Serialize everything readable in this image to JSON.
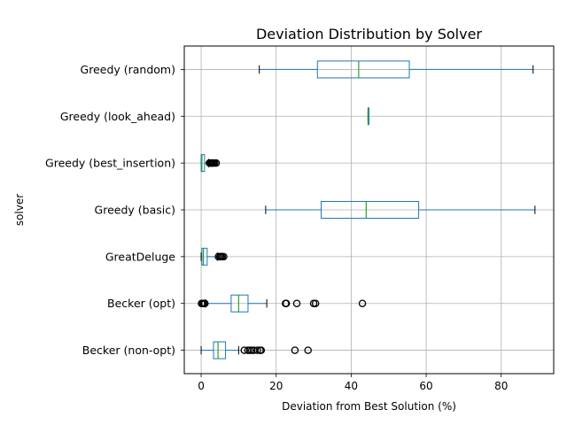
{
  "chart_data": {
    "type": "boxplot",
    "orientation": "horizontal",
    "title": "Deviation Distribution by Solver",
    "xlabel": "Deviation from Best Solution (%)",
    "ylabel": "solver",
    "xlim": [
      -4.5,
      94
    ],
    "xticks": [
      0,
      20,
      40,
      60,
      80
    ],
    "grid": true,
    "colors": {
      "box": "#1f77b4",
      "median": "#2ca02c",
      "grid": "#b0b0b0",
      "axis": "#000000",
      "flier": "#000000"
    },
    "categories": [
      "Greedy (random)",
      "Greedy (look_ahead)",
      "Greedy (best_insertion)",
      "Greedy (basic)",
      "GreatDeluge",
      "Becker (opt)",
      "Becker (non-opt)"
    ],
    "boxes": [
      {
        "label": "Greedy (random)",
        "whislo": 15.5,
        "q1": 31,
        "med": 42,
        "q3": 55.5,
        "whishi": 88.5,
        "fliers": []
      },
      {
        "label": "Greedy (look_ahead)",
        "whislo": 44.5,
        "q1": 44.5,
        "med": 44.5,
        "q3": 44.5,
        "whishi": 44.5,
        "fliers": []
      },
      {
        "label": "Greedy (best_insertion)",
        "whislo": 0,
        "q1": 0,
        "med": 0.2,
        "q3": 0.9,
        "whishi": 2,
        "fliers": [
          2.2,
          2.4,
          2.6,
          2.8,
          3,
          3.3,
          3.6,
          4
        ]
      },
      {
        "label": "Greedy (basic)",
        "whislo": 17.2,
        "q1": 32,
        "med": 44,
        "q3": 58,
        "whishi": 89,
        "fliers": []
      },
      {
        "label": "GreatDeluge",
        "whislo": 0,
        "q1": 0.2,
        "med": 0.6,
        "q3": 1.6,
        "whishi": 4.3,
        "fliers": [
          4.6,
          5,
          5.3,
          5.6,
          6
        ]
      },
      {
        "label": "Becker (opt)",
        "whislo": 1.2,
        "q1": 8,
        "med": 10,
        "q3": 12.5,
        "whishi": 17.5,
        "fliers": [
          0.1,
          0.4,
          0.7,
          1,
          22.5,
          22.7,
          25.5,
          30,
          30.5,
          43
        ]
      },
      {
        "label": "Becker (non-opt)",
        "whislo": 0,
        "q1": 3.3,
        "med": 4.5,
        "q3": 6.5,
        "whishi": 10,
        "fliers": [
          11.5,
          12.5,
          13,
          13.5,
          14,
          15,
          15.7,
          16,
          25,
          28.5
        ]
      }
    ]
  }
}
